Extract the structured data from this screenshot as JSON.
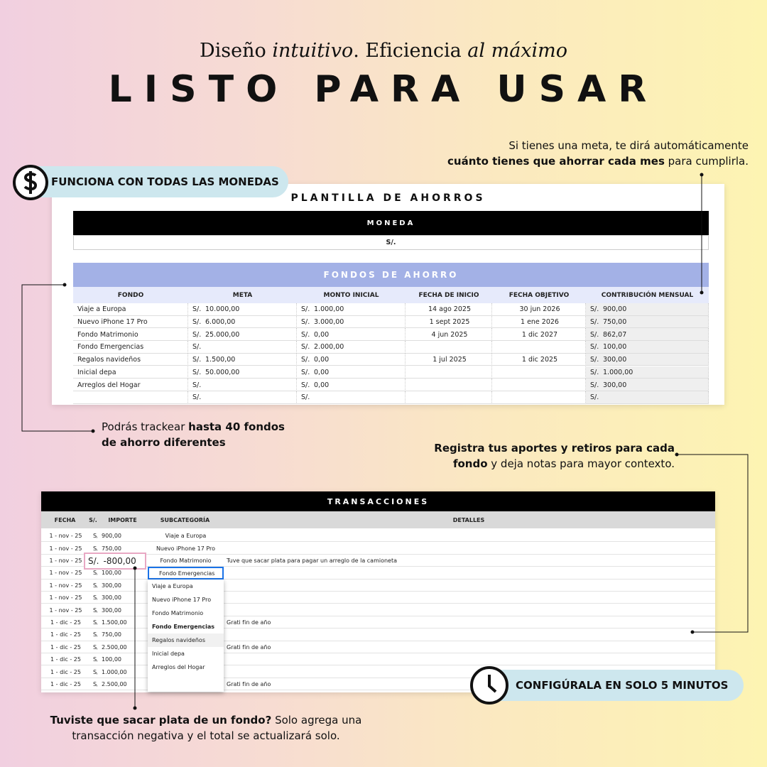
{
  "header": {
    "subtitle": [
      "Diseño ",
      "intuitivo",
      ". Eficiencia ",
      "al máximo"
    ],
    "title": "LISTO PARA USAR"
  },
  "badges": [
    "FUNCIONA CON TODAS LAS MONEDAS",
    "CONFIGÚRALA EN SOLO 5 MINUTOS"
  ],
  "callouts": [
    [
      "Si tienes una meta, te dirá automáticamente ",
      "cuánto tienes que ahorrar cada mes",
      " para cumplirla."
    ],
    [
      "Podrás trackear ",
      "hasta 40 fondos de ahorro diferentes"
    ],
    [
      "Registra tus aportes y retiros para cada fondo",
      " y deja notas para mayor contexto."
    ],
    [
      "Tuviste que sacar plata de un fondo?",
      " Solo agrega una transacción negativa y el total se actualizará solo."
    ]
  ],
  "savings_sheet": {
    "title": "PLANTILLA DE AHORROS",
    "currency_header": "MONEDA",
    "currency": "S/.",
    "section": "FONDOS DE AHORRO",
    "columns": [
      "FONDO",
      "META",
      "MONTO INICIAL",
      "FECHA DE INICIO",
      "FECHA OBJETIVO",
      "CONTRIBUCIÓN MENSUAL"
    ],
    "rows": [
      [
        "Viaje a Europa",
        "S/.",
        "10.000,00",
        "S/.",
        "1.000,00",
        "14 ago 2025",
        "30 jun 2026",
        "S/.",
        "900,00"
      ],
      [
        "Nuevo iPhone 17 Pro",
        "S/.",
        "6.000,00",
        "S/.",
        "3.000,00",
        "1 sept 2025",
        "1 ene 2026",
        "S/.",
        "750,00"
      ],
      [
        "Fondo Matrimonio",
        "S/.",
        "25.000,00",
        "S/.",
        "0,00",
        "4 jun 2025",
        "1 dic 2027",
        "S/.",
        "862,07"
      ],
      [
        "Fondo Emergencias",
        "S/.",
        null,
        "S/.",
        "2.000,00",
        null,
        null,
        "S/.",
        "100,00"
      ],
      [
        "Regalos navideños",
        "S/.",
        "1.500,00",
        "S/.",
        "0,00",
        "1 jul 2025",
        "1 dic 2025",
        "S/.",
        "300,00"
      ],
      [
        "Inicial depa",
        "S/.",
        "50.000,00",
        "S/.",
        "0,00",
        null,
        null,
        "S/.",
        "1.000,00"
      ],
      [
        "Arreglos del Hogar",
        "S/.",
        null,
        "S/.",
        "0,00",
        null,
        null,
        "S/.",
        "300,00"
      ],
      [
        null,
        "S/.",
        null,
        "S/.",
        null,
        null,
        null,
        "S/.",
        null
      ]
    ]
  },
  "transactions_sheet": {
    "title": "TRANSACCIONES",
    "columns": [
      "FECHA",
      "S/.",
      "IMPORTE",
      "SUBCATEGORÍA",
      "DETALLES"
    ],
    "rows": [
      [
        "1 - nov - 25",
        "S/.",
        "900,00",
        "Viaje a Europa",
        null
      ],
      [
        "1 - nov - 25",
        "S/.",
        "750,00",
        "Nuevo iPhone 17 Pro",
        null
      ],
      [
        "1 - nov - 25",
        "S/.",
        "-800,00",
        "Fondo Matrimonio",
        "Tuve que sacar plata para pagar un arreglo de la camioneta"
      ],
      [
        "1 - nov - 25",
        "S/.",
        "100,00",
        "Fondo Emergencias",
        null
      ],
      [
        "1 - nov - 25",
        "S/.",
        "300,00",
        null,
        null
      ],
      [
        "1 - nov - 25",
        "S/.",
        "300,00",
        null,
        null
      ],
      [
        "1 - nov - 25",
        "S/.",
        "300,00",
        null,
        null
      ],
      [
        "1 - dic - 25",
        "S/.",
        "1.500,00",
        null,
        "Grati fin de año"
      ],
      [
        "1 - dic - 25",
        "S/.",
        "750,00",
        null,
        null
      ],
      [
        "1 - dic - 25",
        "S/.",
        "2.500,00",
        null,
        "Grati fin de año"
      ],
      [
        "1 - dic - 25",
        "S/.",
        "100,00",
        null,
        null
      ],
      [
        "1 - dic - 25",
        "S/.",
        "1.000,00",
        null,
        null
      ],
      [
        "1 - dic - 25",
        "S/.",
        "2.500,00",
        null,
        "Grati fin de año"
      ]
    ],
    "dropdown_options": [
      "Viaje a Europa",
      "Nuevo iPhone 17 Pro",
      "Fondo Matrimonio",
      "Fondo Emergencias",
      "Regalos navideños",
      "Inicial depa",
      "Arreglos del Hogar"
    ]
  }
}
